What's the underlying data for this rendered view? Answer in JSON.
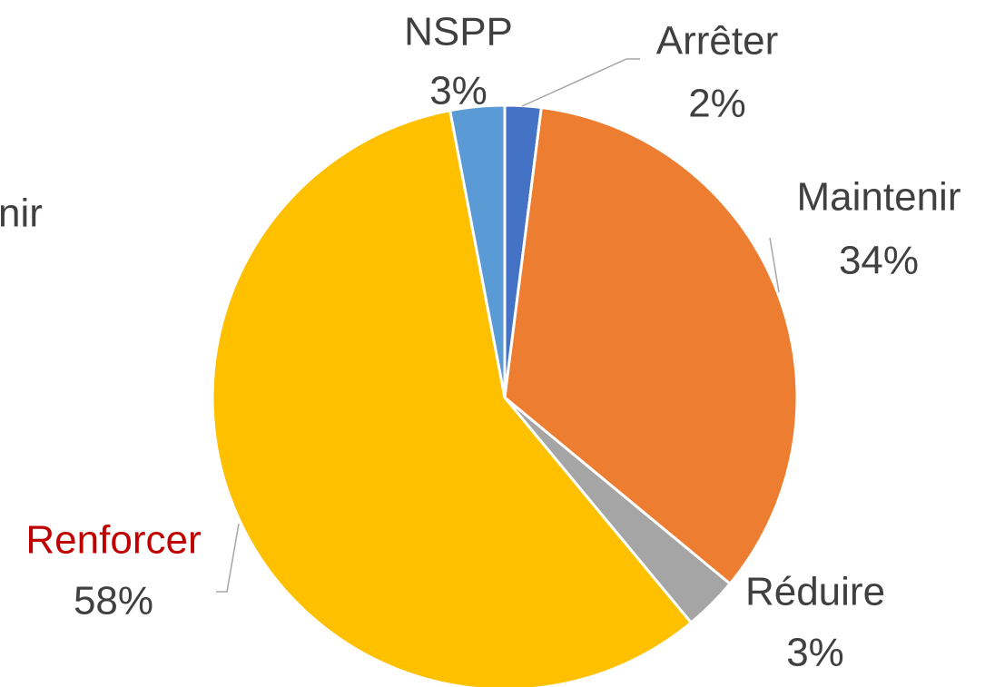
{
  "chart_data": {
    "type": "pie",
    "categories": [
      "Arrêter",
      "Maintenir",
      "Réduire",
      "Renforcer",
      "NSPP"
    ],
    "values": [
      2,
      34,
      3,
      58,
      3
    ],
    "value_labels": [
      "2%",
      "34%",
      "3%",
      "58%",
      "3%"
    ],
    "colors": [
      "#4472c4",
      "#ed7d31",
      "#a5a5a5",
      "#ffc000",
      "#5b9bd5"
    ],
    "label_colors": [
      "#404040",
      "#404040",
      "#404040",
      "#c00000",
      "#404040"
    ],
    "annotations": [
      "nir"
    ]
  }
}
